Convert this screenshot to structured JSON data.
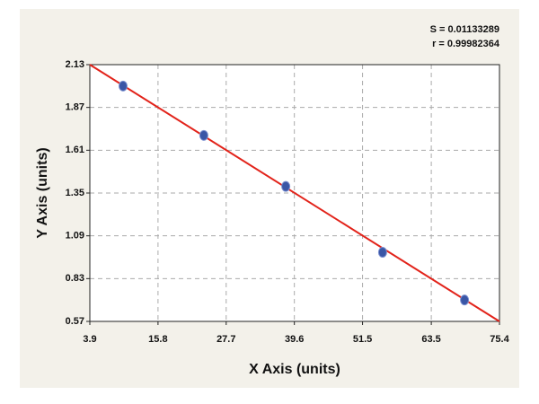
{
  "chart_data": {
    "type": "scatter",
    "x_label": "X Axis (units)",
    "y_label": "Y Axis (units)",
    "annotations": [
      "S = 0.01133289",
      "r = 0.99982364"
    ],
    "series": [
      {
        "color": "#3a56a6",
        "x": [
          9.7,
          23.8,
          38.1,
          55.0,
          69.3
        ],
        "values": [
          2.0,
          1.7,
          1.39,
          0.99,
          0.7
        ]
      }
    ],
    "fit": {
      "color": "#e2231a",
      "x": [
        3.9,
        75.4
      ],
      "y": [
        2.13,
        0.57
      ]
    },
    "xlim": [
      3.9,
      75.4
    ],
    "xticks": [
      3.9,
      15.8,
      27.7,
      39.6,
      51.5,
      63.5,
      75.4
    ],
    "ylim": [
      0.57,
      2.13
    ],
    "yticks": [
      0.57,
      0.83,
      1.09,
      1.35,
      1.61,
      1.87,
      2.13
    ],
    "grid": true
  }
}
